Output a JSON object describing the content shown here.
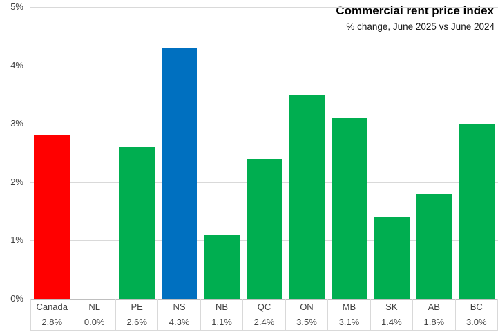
{
  "chart_data": {
    "type": "bar",
    "title": "Commercial rent price index",
    "subtitle": "% change, June 2025 vs June 2024",
    "categories": [
      "Canada",
      "NL",
      "PE",
      "NS",
      "NB",
      "QC",
      "ON",
      "MB",
      "SK",
      "AB",
      "BC"
    ],
    "values": [
      2.8,
      0.0,
      2.6,
      4.3,
      1.1,
      2.4,
      3.5,
      3.1,
      1.4,
      1.8,
      3.0
    ],
    "value_labels": [
      "2.8%",
      "0.0%",
      "2.6%",
      "4.3%",
      "1.1%",
      "2.4%",
      "3.5%",
      "3.1%",
      "1.4%",
      "1.8%",
      "3.0%"
    ],
    "bar_colors": [
      "#ff0000",
      "#00ae50",
      "#00ae50",
      "#0070c0",
      "#00ae50",
      "#00ae50",
      "#00ae50",
      "#00ae50",
      "#00ae50",
      "#00ae50",
      "#00ae50"
    ],
    "ylim": [
      0,
      5
    ],
    "ytick_labels": [
      "0%",
      "1%",
      "2%",
      "3%",
      "4%",
      "5%"
    ],
    "grid": true,
    "legend": false,
    "colors": {
      "gridline": "#d9d9d9",
      "axis_line": "#bfbfbf",
      "label_text": "#404040"
    }
  }
}
